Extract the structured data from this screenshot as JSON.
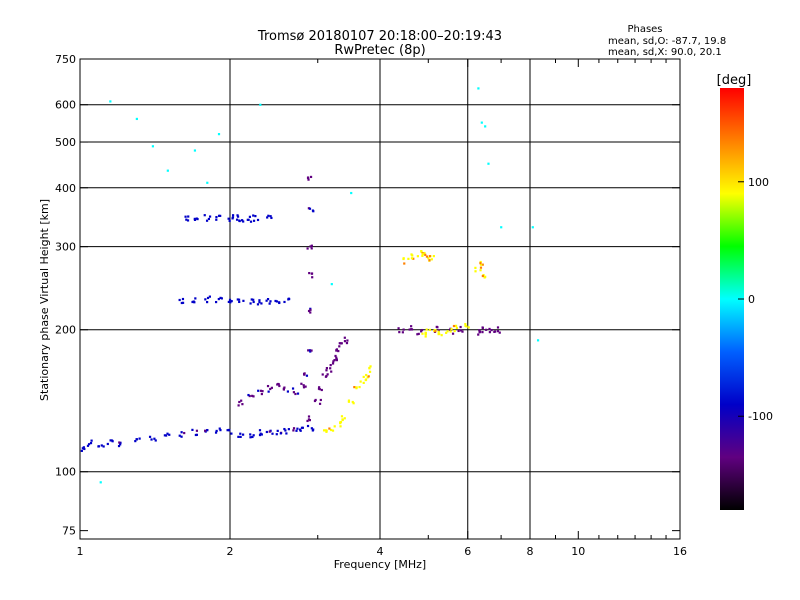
{
  "chart_data": {
    "type": "scatter",
    "title": "Tromsø 20180107 20:18:00–20:19:43",
    "subtitle": "RwPretec (8p)",
    "xlabel": "Frequency [MHz]",
    "ylabel": "Stationary phase Virtual Height [km]",
    "xscale": "log2",
    "yscale": "log",
    "xlim": [
      1,
      16
    ],
    "ylim": [
      72,
      750
    ],
    "x_ticks": [
      1,
      2,
      4,
      6,
      8,
      10,
      16
    ],
    "x_tick_labels": [
      "1",
      "2",
      "4",
      "6",
      "8",
      "10",
      "16"
    ],
    "x_gridlines": [
      2,
      4,
      6,
      8
    ],
    "y_ticks": [
      75,
      100,
      200,
      300,
      400,
      500,
      600,
      750
    ],
    "y_tick_labels": [
      "75",
      "100",
      "200",
      "300",
      "400",
      "500",
      "600",
      "750"
    ],
    "y_gridlines": [
      100,
      200,
      300,
      400,
      500,
      600
    ],
    "grid": true,
    "legend_title": "Phases",
    "legend_lines": [
      "mean, sd,O: -87.7, 19.8",
      "mean, sd,X:  90.0, 20.1"
    ],
    "legend_position": "top-right",
    "colorbar": {
      "label": "[deg]",
      "range": [
        -180,
        180
      ],
      "ticks": [
        100,
        0,
        -100
      ],
      "tick_labels": [
        "100",
        "0",
        "-100"
      ],
      "colors": [
        "#ff0000",
        "#ff8000",
        "#ffff00",
        "#00ff00",
        "#00ffff",
        "#0060ff",
        "#0000c8",
        "#600080",
        "#000000"
      ]
    },
    "series": [
      {
        "name": "O-mode F layer (blue, ~-100 deg)",
        "phase": -100,
        "x": [
          1.02,
          1.05,
          1.1,
          1.15,
          1.2,
          1.3,
          1.4,
          1.5,
          1.6,
          1.7,
          1.8,
          1.9,
          2.0,
          2.1,
          2.2,
          2.3,
          2.4,
          2.5,
          2.6,
          2.7,
          2.8,
          2.9
        ],
        "y": [
          112,
          115,
          113,
          116,
          114,
          117,
          118,
          119,
          120,
          121,
          121,
          122,
          121,
          120,
          120,
          121,
          121,
          121,
          122,
          122,
          123,
          124
        ]
      },
      {
        "name": "O-mode trace (blue/violet, ~-120 deg)",
        "phase": -120,
        "x": [
          2.1,
          2.2,
          2.3,
          2.4,
          2.5,
          2.6,
          2.7,
          2.8,
          2.85,
          2.9,
          2.9,
          2.9,
          2.9,
          2.9,
          2.9
        ],
        "y": [
          140,
          145,
          148,
          150,
          152,
          150,
          148,
          152,
          160,
          180,
          220,
          260,
          300,
          360,
          420
        ]
      },
      {
        "name": "O-mode cusp (violet, ~-140 deg)",
        "phase": -140,
        "x": [
          2.9,
          3.0,
          3.05,
          3.1,
          3.15,
          3.2,
          3.25,
          3.3,
          3.35,
          3.4
        ],
        "y": [
          130,
          140,
          150,
          160,
          165,
          170,
          175,
          180,
          185,
          190
        ]
      },
      {
        "name": "X-mode (yellow/orange, ~+100 deg)",
        "phase": 100,
        "x": [
          3.1,
          3.2,
          3.3,
          3.4,
          3.5,
          3.6,
          3.7,
          3.75,
          3.8
        ],
        "y": [
          123,
          124,
          126,
          130,
          140,
          150,
          155,
          160,
          165
        ]
      },
      {
        "name": "Oblique echoes 230 km (blue)",
        "phase": -95,
        "x": [
          1.6,
          1.7,
          1.8,
          1.9,
          2.0,
          2.1,
          2.2,
          2.3,
          2.4,
          2.5,
          2.6
        ],
        "y": [
          230,
          231,
          232,
          231,
          230,
          230,
          229,
          229,
          230,
          231,
          232
        ]
      },
      {
        "name": "Oblique echoes 345 km (blue)",
        "phase": -95,
        "x": [
          1.65,
          1.7,
          1.8,
          1.9,
          2.0,
          2.05,
          2.1,
          2.2,
          2.25,
          2.4
        ],
        "y": [
          345,
          347,
          345,
          344,
          345,
          345,
          344,
          343,
          345,
          346
        ]
      },
      {
        "name": "F2 region 200 km (violet)",
        "phase": -140,
        "x": [
          4.4,
          4.6,
          4.8,
          5.2,
          5.6,
          5.8,
          6.3,
          6.5,
          6.7,
          6.9
        ],
        "y": [
          200,
          202,
          198,
          200,
          199,
          201,
          198,
          200,
          199,
          200
        ]
      },
      {
        "name": "F2 region 200 km (yellow)",
        "phase": 100,
        "x": [
          4.9,
          5.0,
          5.1,
          5.3,
          5.5,
          5.7,
          6.0
        ],
        "y": [
          196,
          198,
          200,
          197,
          199,
          201,
          203
        ]
      },
      {
        "name": "Upper echoes 280 km (orange)",
        "phase": 110,
        "x": [
          4.5,
          4.6,
          4.8,
          4.9,
          5.0,
          5.1,
          6.3,
          6.4,
          6.5
        ],
        "y": [
          280,
          285,
          290,
          288,
          282,
          286,
          270,
          275,
          260
        ]
      },
      {
        "name": "Scattered points",
        "phase": 0,
        "x": [
          1.1,
          1.15,
          1.3,
          1.4,
          1.5,
          1.7,
          1.8,
          1.9,
          2.3,
          3.2,
          3.5,
          6.3,
          6.4,
          6.5,
          6.6,
          7.0,
          8.1,
          8.3
        ],
        "y": [
          95,
          610,
          560,
          490,
          435,
          480,
          410,
          520,
          600,
          250,
          390,
          650,
          550,
          540,
          450,
          330,
          330,
          190
        ]
      }
    ]
  }
}
